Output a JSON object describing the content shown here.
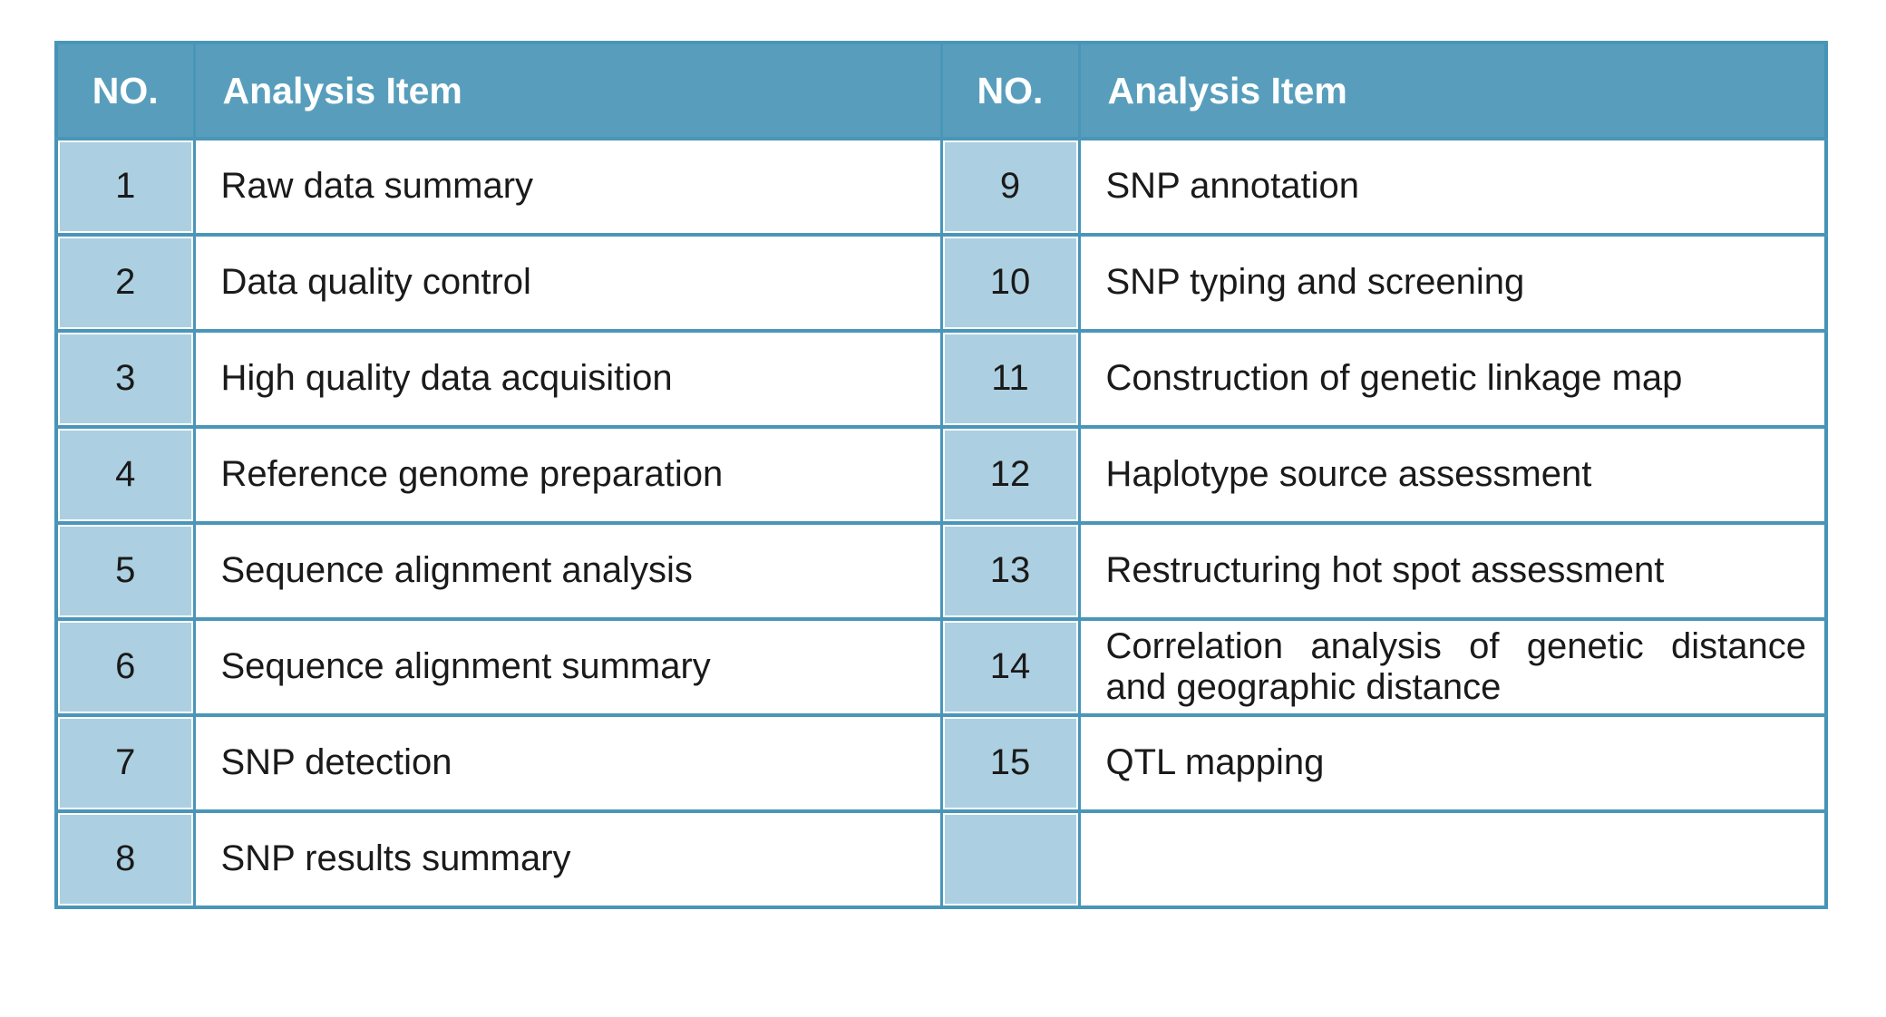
{
  "table": {
    "columns": [
      {
        "label": "NO."
      },
      {
        "label": "Analysis Item"
      },
      {
        "label": "NO."
      },
      {
        "label": "Analysis Item"
      }
    ],
    "rows": [
      {
        "left_no": "1",
        "left_item": "Raw data summary",
        "right_no": "9",
        "right_item": "SNP annotation"
      },
      {
        "left_no": "2",
        "left_item": "Data quality control",
        "right_no": "10",
        "right_item": "SNP typing and screening"
      },
      {
        "left_no": "3",
        "left_item": "High quality data acquisition",
        "right_no": "11",
        "right_item": "Construction of genetic linkage map"
      },
      {
        "left_no": "4",
        "left_item": "Reference genome preparation",
        "right_no": "12",
        "right_item": "Haplotype source assessment"
      },
      {
        "left_no": "5",
        "left_item": "Sequence alignment analysis",
        "right_no": "13",
        "right_item": "Restructuring hot spot assessment"
      },
      {
        "left_no": "6",
        "left_item": "Sequence alignment summary",
        "right_no": "14",
        "right_item": "Correlation analysis of genetic distance and geographic distance"
      },
      {
        "left_no": "7",
        "left_item": "SNP detection",
        "right_no": "15",
        "right_item": "QTL mapping"
      },
      {
        "left_no": "8",
        "left_item": "SNP results summary",
        "right_no": "",
        "right_item": ""
      }
    ],
    "colors": {
      "header_bg": "#589EBC",
      "header_text": "#FFFFFF",
      "row_number_bg": "#ACD0E1",
      "border": "#4A96B8",
      "body_text": "#1A1A1A",
      "page_bg": "#FFFFFF"
    }
  }
}
